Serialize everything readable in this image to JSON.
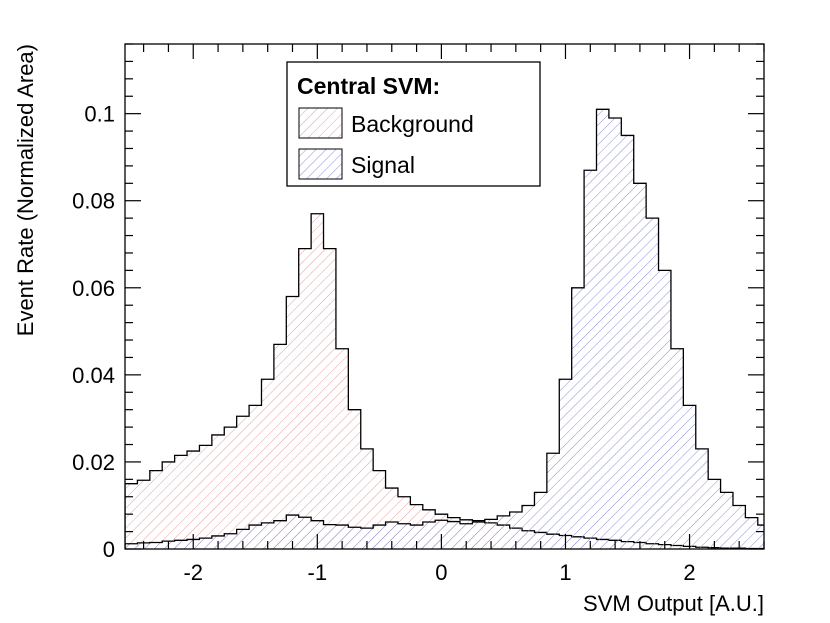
{
  "chart_data": {
    "type": "histogram",
    "xlabel": "SVM Output [A.U.]",
    "ylabel": "Event Rate (Normalized Area)",
    "xlim": [
      -2.55,
      2.6
    ],
    "ylim": [
      0,
      0.116
    ],
    "bin_start": -2.55,
    "bin_width": 0.1,
    "x_ticks": [
      -2,
      -1,
      0,
      1,
      2
    ],
    "x_tick_labels": [
      "-2",
      "-1",
      "0",
      "1",
      "2"
    ],
    "y_ticks": [
      0,
      0.02,
      0.04,
      0.06,
      0.08,
      0.1
    ],
    "y_tick_labels": [
      "0",
      "0.02",
      "0.04",
      "0.06",
      "0.08",
      "0.1"
    ],
    "legend": {
      "title": "Central SVM:",
      "position": "top-center"
    },
    "series": [
      {
        "name": "Background",
        "hatch_color": "#e6a0a0",
        "values": [
          0.015,
          0.0158,
          0.018,
          0.02,
          0.0215,
          0.0225,
          0.0238,
          0.0262,
          0.028,
          0.0305,
          0.033,
          0.039,
          0.047,
          0.058,
          0.069,
          0.077,
          0.069,
          0.046,
          0.032,
          0.023,
          0.018,
          0.014,
          0.012,
          0.0102,
          0.009,
          0.008,
          0.0072,
          0.0067,
          0.0065,
          0.006,
          0.0055,
          0.0048,
          0.0042,
          0.0038,
          0.0034,
          0.0031,
          0.0028,
          0.0025,
          0.0022,
          0.002,
          0.0017,
          0.0015,
          0.0012,
          0.001,
          0.0008,
          0.0006,
          0.0004,
          0.0003,
          0.0002,
          0.0002,
          0.0001,
          0.0001
        ]
      },
      {
        "name": "Signal",
        "hatch_color": "#8e90d8",
        "values": [
          0.0012,
          0.0014,
          0.0015,
          0.0018,
          0.002,
          0.0022,
          0.0025,
          0.003,
          0.0035,
          0.0045,
          0.0055,
          0.006,
          0.0065,
          0.0078,
          0.0073,
          0.0065,
          0.0056,
          0.0055,
          0.005,
          0.0048,
          0.0055,
          0.0062,
          0.0058,
          0.0055,
          0.0062,
          0.0066,
          0.0063,
          0.0058,
          0.0062,
          0.0068,
          0.0076,
          0.0085,
          0.01,
          0.013,
          0.022,
          0.039,
          0.06,
          0.087,
          0.101,
          0.099,
          0.095,
          0.084,
          0.076,
          0.064,
          0.046,
          0.033,
          0.023,
          0.016,
          0.013,
          0.01,
          0.0072,
          0.0055
        ]
      }
    ]
  }
}
